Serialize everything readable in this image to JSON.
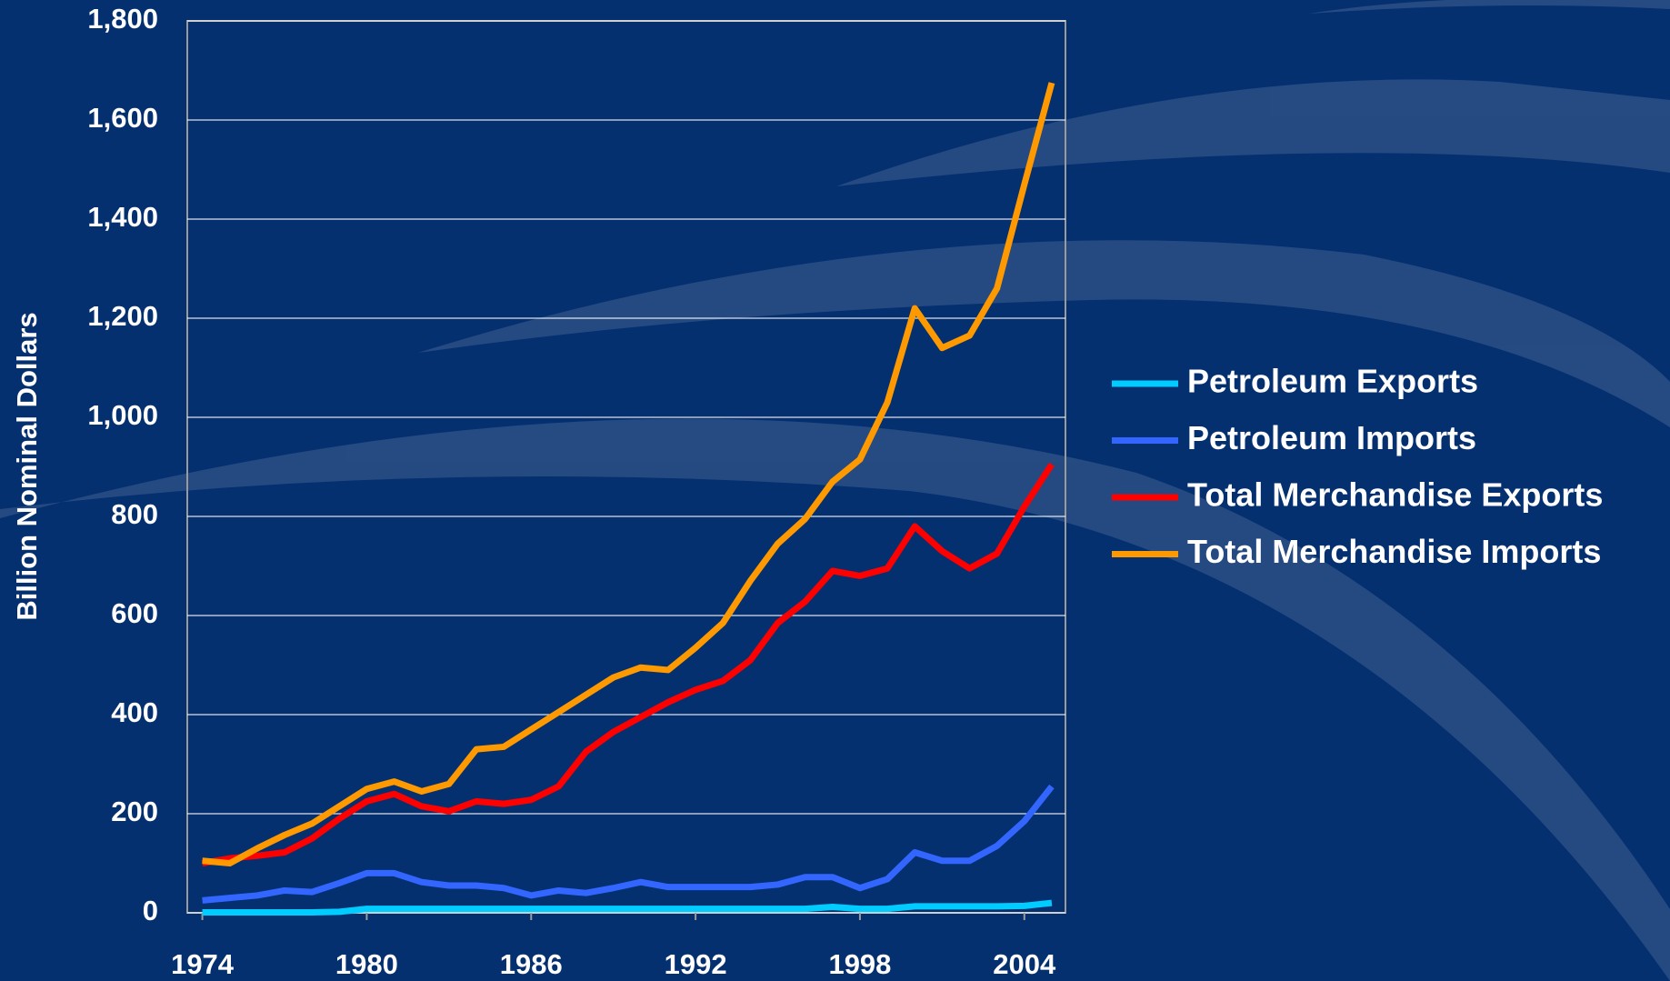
{
  "chart_data": {
    "type": "line",
    "y_label": "Billion Nominal Dollars",
    "x": [
      1974,
      1975,
      1976,
      1977,
      1978,
      1979,
      1980,
      1981,
      1982,
      1983,
      1984,
      1985,
      1986,
      1987,
      1988,
      1989,
      1990,
      1991,
      1992,
      1993,
      1994,
      1995,
      1996,
      1997,
      1998,
      1999,
      2000,
      2001,
      2002,
      2003,
      2004,
      2005
    ],
    "series": [
      {
        "name": "Petroleum Exports",
        "color": "#00ccff",
        "values": [
          1,
          1,
          1,
          1,
          1,
          2,
          8,
          8,
          8,
          8,
          8,
          8,
          8,
          8,
          8,
          8,
          8,
          8,
          8,
          8,
          8,
          8,
          8,
          12,
          8,
          8,
          13,
          13,
          13,
          13,
          14,
          20
        ]
      },
      {
        "name": "Petroleum Imports",
        "color": "#3366ff",
        "values": [
          25,
          30,
          35,
          45,
          42,
          60,
          80,
          80,
          62,
          55,
          55,
          50,
          35,
          45,
          40,
          50,
          62,
          52,
          52,
          52,
          52,
          57,
          72,
          72,
          50,
          68,
          122,
          105,
          105,
          135,
          185,
          255
        ]
      },
      {
        "name": "Total Merchandise Exports",
        "color": "#ff0000",
        "values": [
          100,
          110,
          115,
          122,
          150,
          190,
          225,
          240,
          215,
          205,
          225,
          220,
          228,
          255,
          325,
          365,
          395,
          425,
          450,
          468,
          510,
          585,
          628,
          690,
          680,
          695,
          780,
          730,
          695,
          725,
          820,
          905
        ]
      },
      {
        "name": "Total Merchandise Imports",
        "color": "#ff9900",
        "values": [
          105,
          100,
          130,
          157,
          180,
          215,
          250,
          265,
          245,
          260,
          330,
          335,
          370,
          405,
          440,
          475,
          495,
          490,
          535,
          585,
          670,
          745,
          795,
          870,
          915,
          1030,
          1220,
          1140,
          1165,
          1260,
          1470,
          1675
        ]
      }
    ],
    "xlim": [
      1973.45,
      2005.5
    ],
    "xticks": [
      1974,
      1980,
      1986,
      1992,
      1998,
      2004
    ],
    "ylim": [
      0,
      1800
    ],
    "yticks": [
      0,
      200,
      400,
      600,
      800,
      {
        "value": 1000,
        "label": "1,000"
      },
      {
        "value": 1200,
        "label": "1,200"
      },
      {
        "value": 1400,
        "label": "1,400"
      },
      {
        "value": 1600,
        "label": "1,600"
      },
      {
        "value": 1800,
        "label": "1,800"
      }
    ],
    "grid": true,
    "legend": "right"
  }
}
